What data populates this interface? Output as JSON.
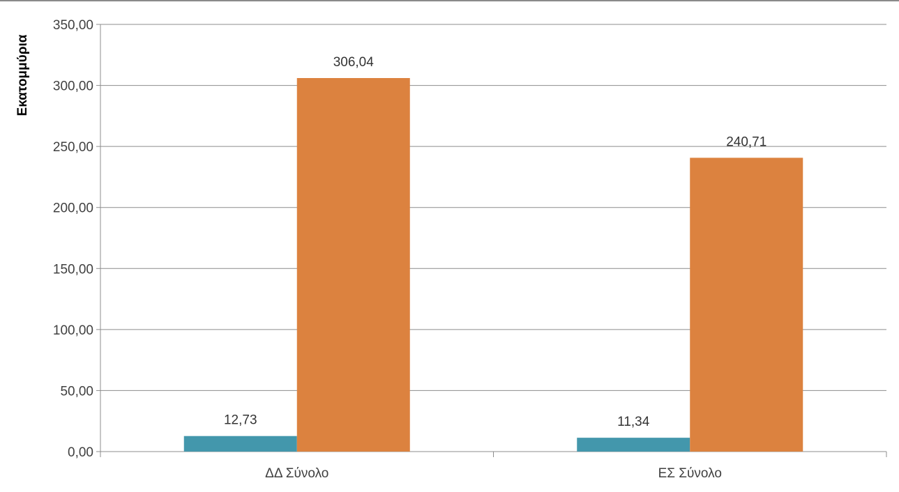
{
  "chart_data": {
    "type": "bar",
    "categories": [
      "ΔΔ Σύνολο",
      "ΕΣ Σύνολο"
    ],
    "series": [
      {
        "values": [
          12.73,
          11.34
        ],
        "labels": [
          "12,73",
          "11,34"
        ],
        "color": "#4397AC"
      },
      {
        "values": [
          306.04,
          240.71
        ],
        "labels": [
          "306,04",
          "240,71"
        ],
        "color": "#DC823F"
      }
    ],
    "title": "",
    "xlabel": "",
    "ylabel": "Εκατομμύρια",
    "ylim": [
      0,
      350
    ],
    "yticks": [
      0,
      50,
      100,
      150,
      200,
      250,
      300,
      350
    ],
    "ytick_labels": [
      "0,00",
      "50,00",
      "100,00",
      "150,00",
      "200,00",
      "250,00",
      "300,00",
      "350,00"
    ],
    "grid": true,
    "legend": "none"
  }
}
